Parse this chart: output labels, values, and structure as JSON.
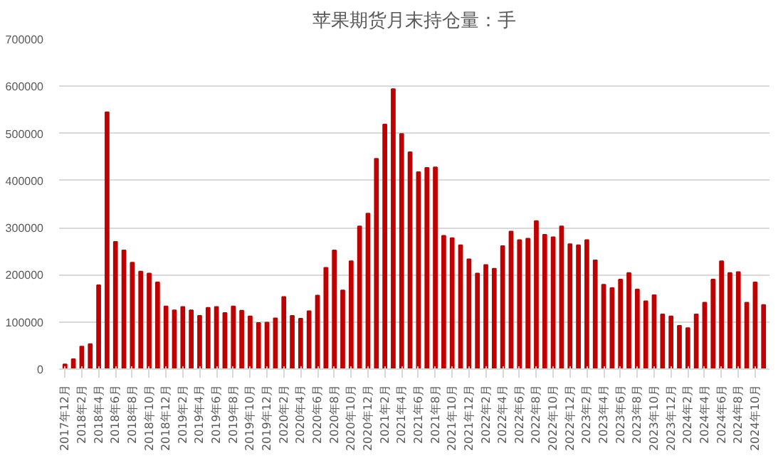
{
  "chart_data": {
    "type": "bar",
    "title": "苹果期货月末持仓量：手",
    "categories": [
      "2017年12月",
      null,
      "2018年2月",
      null,
      "2018年4月",
      null,
      "2018年6月",
      null,
      "2018年8月",
      null,
      "2018年10月",
      null,
      "2018年12月",
      null,
      "2019年2月",
      null,
      "2019年4月",
      null,
      "2019年6月",
      null,
      "2019年8月",
      null,
      "2019年10月",
      null,
      "2019年12月",
      null,
      "2020年2月",
      null,
      "2020年4月",
      null,
      "2020年6月",
      null,
      "2020年8月",
      null,
      "2020年10月",
      null,
      "2020年12月",
      null,
      "2021年2月",
      null,
      "2021年4月",
      null,
      "2021年6月",
      null,
      "2021年8月",
      null,
      "2021年10月",
      null,
      "2021年12月",
      null,
      "2022年2月",
      null,
      "2022年4月",
      null,
      "2022年6月",
      null,
      "2022年8月",
      null,
      "2022年10月",
      null,
      "2022年12月",
      null,
      "2023年2月",
      null,
      "2023年4月",
      null,
      "2023年6月",
      null,
      "2023年8月",
      null,
      "2023年10月",
      null,
      "2023年12月",
      null,
      "2024年2月",
      null,
      "2024年4月",
      null,
      "2024年6月",
      null,
      "2024年8月",
      null,
      "2024年10月",
      null
    ],
    "values": [
      10000,
      21000,
      48000,
      53000,
      178000,
      545000,
      270000,
      252000,
      226000,
      207000,
      203000,
      184000,
      133000,
      125000,
      132000,
      125000,
      113000,
      130000,
      132000,
      119000,
      133000,
      124000,
      112000,
      98000,
      99000,
      108000,
      153000,
      113000,
      107000,
      123000,
      156000,
      215000,
      252000,
      167000,
      229000,
      303000,
      330000,
      446000,
      519000,
      594000,
      499000,
      460000,
      418000,
      427000,
      428000,
      283000,
      278000,
      263000,
      233000,
      203000,
      221000,
      213000,
      261000,
      292000,
      274000,
      277000,
      314000,
      285000,
      280000,
      303000,
      265000,
      263000,
      274000,
      231000,
      179000,
      172000,
      190000,
      204000,
      169000,
      144000,
      157000,
      116000,
      112000,
      92000,
      87000,
      116000,
      141000,
      190000,
      229000,
      204000,
      206000,
      141000,
      184000,
      136000
    ],
    "color": "#c00000",
    "ylim": [
      0,
      700000
    ],
    "yticks": [
      0,
      100000,
      200000,
      300000,
      400000,
      500000,
      600000,
      700000
    ],
    "grid": "y"
  }
}
